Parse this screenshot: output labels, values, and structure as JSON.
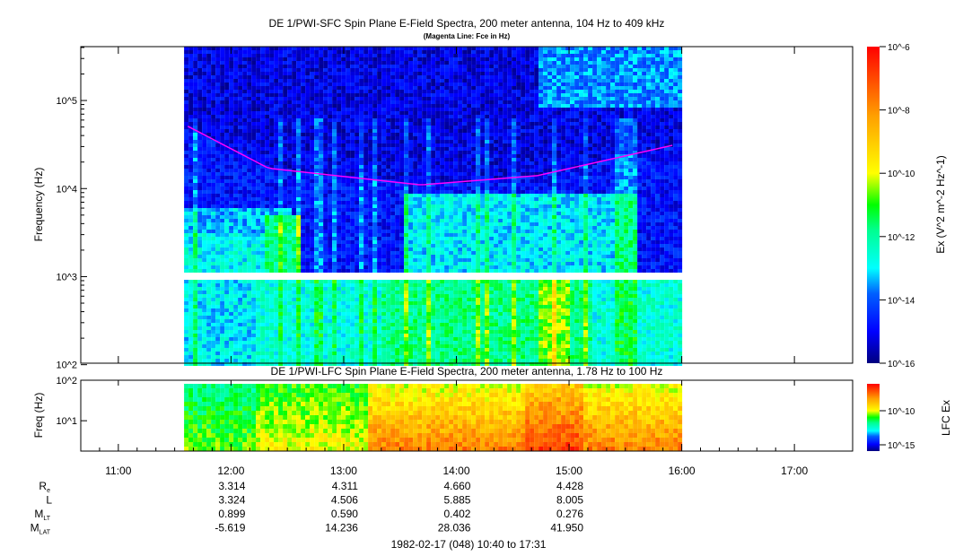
{
  "chart_data": [
    {
      "type": "heatmap",
      "title": "DE 1/PWI-SFC  Spin Plane E-Field Spectra, 200 meter antenna, 104 Hz to 409 kHz",
      "subtitle": "(Magenta Line: Fce in Hz)",
      "ylabel": "Frequency (Hz)",
      "yscale": "log",
      "ylim": [
        104,
        409000
      ],
      "ytick_labels": [
        "10^2",
        "10^3",
        "10^4",
        "10^5"
      ],
      "data_time_range": [
        "11:35",
        "15:58"
      ],
      "colorbar": {
        "label": "Ex (V^2 m^-2 Hz^-1)",
        "scale": "log",
        "range": [
          1e-16,
          1e-06
        ],
        "tick_labels": [
          "10^-16",
          "10^-14",
          "10^-12",
          "10^-10",
          "10^-8",
          "10^-6"
        ]
      },
      "fce_line": {
        "color": "#ff00ff",
        "times": [
          "11:37",
          "12:20",
          "13:41",
          "14:43",
          "15:58"
        ],
        "values_hz": [
          51000,
          17000,
          11000,
          14000,
          32000
        ]
      }
    },
    {
      "type": "heatmap",
      "title": "DE 1/PWI-LFC  Spin Plane E-Field Spectra, 200 meter antenna, 1.78 Hz to 100 Hz",
      "ylabel": "Freq (Hz)",
      "yscale": "log",
      "ylim": [
        1.78,
        100
      ],
      "ytick_labels": [
        "10^1",
        "10^2"
      ],
      "colorbar": {
        "label": "LFC Ex",
        "scale": "log",
        "range": [
          1e-17,
          1e-07
        ],
        "tick_labels": [
          "10^-15",
          "10^-10"
        ]
      }
    }
  ],
  "xaxis": {
    "range": [
      "10:40",
      "17:31"
    ],
    "tick_labels": [
      "11:00",
      "12:00",
      "13:00",
      "14:00",
      "15:00",
      "16:00",
      "17:00"
    ]
  },
  "ephemeris": {
    "labels": [
      {
        "main": "R",
        "sub": "e"
      },
      {
        "main": "L",
        "sub": ""
      },
      {
        "main": "M",
        "sub": "LT"
      },
      {
        "main": "M",
        "sub": "LAT"
      }
    ],
    "columns": [
      "12:00",
      "13:00",
      "14:00",
      "15:00"
    ],
    "rows": [
      [
        "3.314",
        "4.311",
        "4.660",
        "4.428"
      ],
      [
        "3.324",
        "4.506",
        "5.885",
        "8.005"
      ],
      [
        "0.899",
        "0.590",
        "0.402",
        "0.276"
      ],
      [
        "-5.619",
        "14.236",
        "28.036",
        "41.950"
      ]
    ]
  },
  "footer": "1982-02-17 (048) 10:40 to 17:31"
}
